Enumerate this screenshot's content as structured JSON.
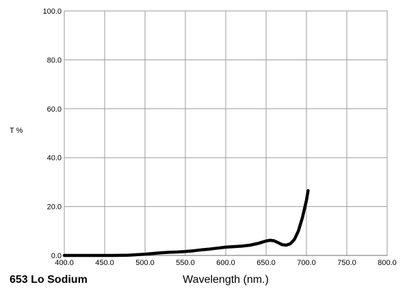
{
  "chart_data": {
    "type": "line",
    "title": "653 Lo Sodium",
    "xlabel": "Wavelength (nm.)",
    "ylabel": "T %",
    "xlim": [
      400,
      800
    ],
    "ylim": [
      0,
      100
    ],
    "x_ticks": [
      "400.0",
      "450.0",
      "500.0",
      "550.0",
      "600.0",
      "650.0",
      "700.0",
      "750.0",
      "800.0"
    ],
    "y_ticks": [
      "0.0",
      "20.0",
      "40.0",
      "60.0",
      "80.0",
      "100.0"
    ],
    "grid": true,
    "line_color": "#000000",
    "series": [
      {
        "x": [
          400,
          420,
          440,
          460,
          480,
          490,
          500,
          510,
          520,
          530,
          540,
          550,
          560,
          570,
          580,
          590,
          600,
          610,
          620,
          630,
          640,
          645,
          650,
          655,
          660,
          665,
          670,
          675,
          680,
          685,
          690,
          695,
          700,
          702
        ],
        "values": [
          0.0,
          0.0,
          0.0,
          0.0,
          0.1,
          0.3,
          0.5,
          0.8,
          1.1,
          1.3,
          1.4,
          1.6,
          1.9,
          2.3,
          2.6,
          3.0,
          3.4,
          3.6,
          3.8,
          4.2,
          4.9,
          5.4,
          5.9,
          6.2,
          6.0,
          5.2,
          4.4,
          4.2,
          4.8,
          6.5,
          10.0,
          15.5,
          22.5,
          26.5
        ]
      }
    ]
  }
}
